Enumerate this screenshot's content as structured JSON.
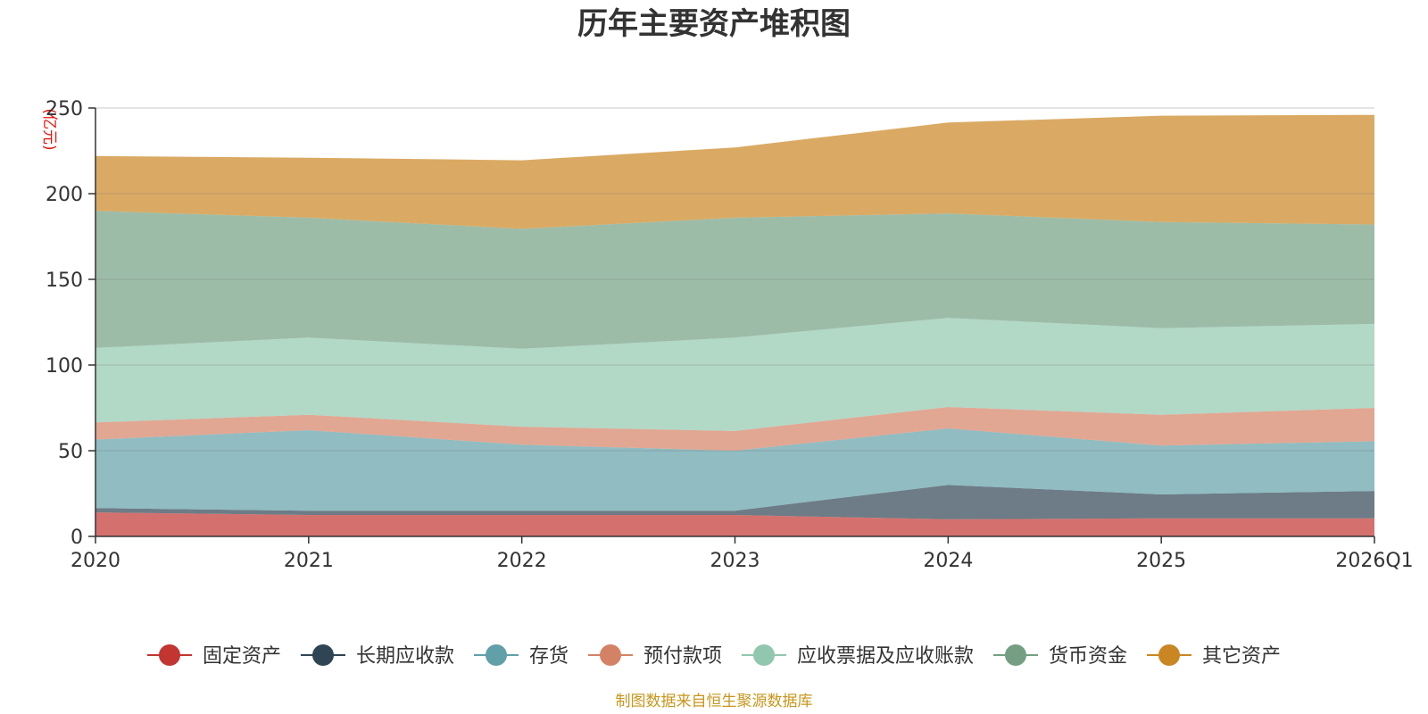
{
  "chart_data": {
    "type": "area",
    "stacked": true,
    "title": "历年主要资产堆积图",
    "ylabel": "(亿元)",
    "xlabel": "",
    "categories": [
      "2020",
      "2021",
      "2022",
      "2023",
      "2024",
      "2025",
      "2026Q1"
    ],
    "ylim": [
      0,
      250
    ],
    "yticks": [
      0,
      50,
      100,
      150,
      200,
      250
    ],
    "grid": true,
    "legend_position": "bottom",
    "series": [
      {
        "name": "固定资产",
        "color": "#c23531",
        "values": [
          14,
          12.5,
          12.5,
          12.5,
          10,
          10.5,
          10.5
        ]
      },
      {
        "name": "长期应收款",
        "color": "#2f4554",
        "values": [
          2.5,
          2.5,
          2.5,
          2.5,
          20,
          14,
          16
        ]
      },
      {
        "name": "存货",
        "color": "#61a0a8",
        "values": [
          40,
          47,
          38.5,
          35,
          33,
          28.5,
          29
        ]
      },
      {
        "name": "预付款项",
        "color": "#d48265",
        "values": [
          10,
          9,
          10.5,
          11.5,
          12.5,
          18,
          19.5
        ]
      },
      {
        "name": "应收票据及应收账款",
        "color": "#91c7ae",
        "values": [
          43.5,
          45,
          45.5,
          54.5,
          52,
          50.5,
          49
        ]
      },
      {
        "name": "货币资金",
        "color": "#749f83",
        "values": [
          80,
          70,
          70,
          70,
          61,
          62,
          58
        ]
      },
      {
        "name": "其它资产",
        "color": "#ca8622",
        "values": [
          32,
          35,
          40,
          41,
          53,
          62,
          64
        ]
      }
    ],
    "source": "制图数据来自恒生聚源数据库"
  }
}
